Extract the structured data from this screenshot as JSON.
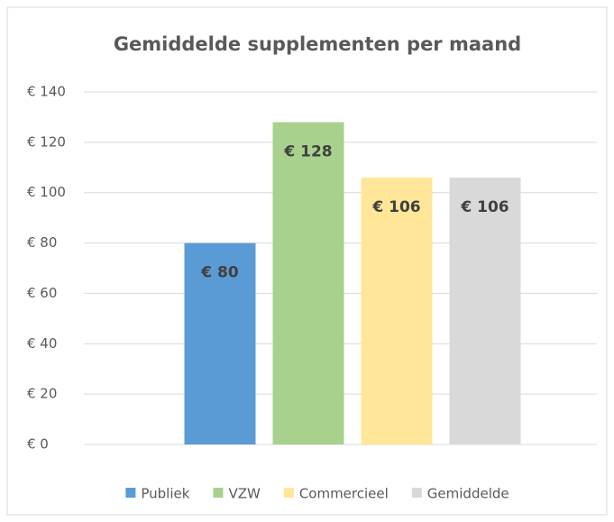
{
  "chart_data": {
    "type": "bar",
    "title": "Gemiddelde supplementen per maand",
    "categories": [
      null
    ],
    "series": [
      {
        "name": "Publiek",
        "color": "#5b9bd5",
        "values": [
          80
        ],
        "value_labels": [
          "€ 80"
        ]
      },
      {
        "name": "VZW",
        "color": "#a9d18e",
        "values": [
          128
        ],
        "value_labels": [
          "€ 128"
        ]
      },
      {
        "name": "Commercieel",
        "color": "#ffe699",
        "values": [
          106
        ],
        "value_labels": [
          "€ 106"
        ]
      },
      {
        "name": "Gemiddelde",
        "color": "#d9d9d9",
        "values": [
          106
        ],
        "value_labels": [
          "€ 106"
        ]
      }
    ],
    "ylim": [
      0,
      140
    ],
    "yticks": [
      {
        "value": 0,
        "label": "€ 0"
      },
      {
        "value": 20,
        "label": "€ 20"
      },
      {
        "value": 40,
        "label": "€ 40"
      },
      {
        "value": 60,
        "label": "€ 60"
      },
      {
        "value": 80,
        "label": "€ 80"
      },
      {
        "value": 100,
        "label": "€ 100"
      },
      {
        "value": 120,
        "label": "€ 120"
      },
      {
        "value": 140,
        "label": "€ 140"
      }
    ],
    "grid": true,
    "legend": "bottom"
  }
}
